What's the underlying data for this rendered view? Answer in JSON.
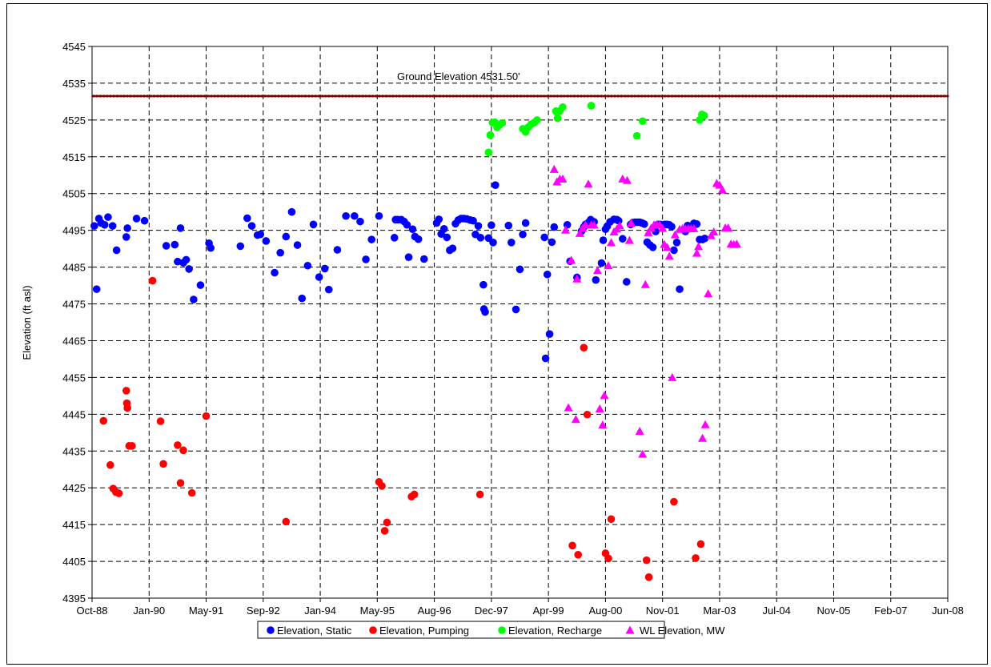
{
  "chart_data": {
    "type": "scatter",
    "ylabel": "Elevation (ft asl)",
    "ylim": [
      4395,
      4545
    ],
    "y_ticks": [
      4395,
      4405,
      4415,
      4425,
      4435,
      4445,
      4455,
      4465,
      4475,
      4485,
      4495,
      4505,
      4515,
      4525,
      4535,
      4545
    ],
    "x_tick_labels": [
      "Oct-88",
      "Jan-90",
      "May-91",
      "Sep-92",
      "Jan-94",
      "May-95",
      "Aug-96",
      "Dec-97",
      "Apr-99",
      "Aug-00",
      "Nov-01",
      "Mar-03",
      "Jul-04",
      "Nov-05",
      "Feb-07",
      "Jun-08"
    ],
    "grid": true,
    "legend_position": "bottom",
    "annotation": {
      "text": "Ground Elevation 4531.50'",
      "value": 4531.5,
      "color": "#800000"
    },
    "series": [
      {
        "name": "Elevation, Static",
        "color": "#0000ff",
        "marker": "circle",
        "points": [
          [
            0.04,
            4496.2
          ],
          [
            0.08,
            4479
          ],
          [
            0.12,
            4498.2
          ],
          [
            0.16,
            4497
          ],
          [
            0.22,
            4496.5
          ],
          [
            0.28,
            4498.6
          ],
          [
            0.36,
            4496.2
          ],
          [
            0.43,
            4489.6
          ],
          [
            0.6,
            4493.2
          ],
          [
            0.62,
            4495.6
          ],
          [
            0.78,
            4498.2
          ],
          [
            0.92,
            4497.6
          ],
          [
            1.3,
            4490.8
          ],
          [
            1.45,
            4491.1
          ],
          [
            1.5,
            4486.5
          ],
          [
            1.55,
            4495.6
          ],
          [
            1.6,
            4486.2
          ],
          [
            1.65,
            4487
          ],
          [
            1.7,
            4484.5
          ],
          [
            1.78,
            4476.2
          ],
          [
            1.9,
            4480.1
          ],
          [
            2.05,
            4491.5
          ],
          [
            2.08,
            4490.2
          ],
          [
            2.6,
            4490.7
          ],
          [
            2.72,
            4498.3
          ],
          [
            2.8,
            4496.2
          ],
          [
            2.9,
            4493.7
          ],
          [
            2.95,
            4493.9
          ],
          [
            3.05,
            4492.1
          ],
          [
            3.2,
            4483.5
          ],
          [
            3.3,
            4488.9
          ],
          [
            3.4,
            4493.3
          ],
          [
            3.5,
            4500
          ],
          [
            3.6,
            4491
          ],
          [
            3.68,
            4476.5
          ],
          [
            3.78,
            4485.4
          ],
          [
            3.88,
            4496.6
          ],
          [
            3.98,
            4482.3
          ],
          [
            4.08,
            4484.6
          ],
          [
            4.15,
            4478.9
          ],
          [
            4.3,
            4489.7
          ],
          [
            4.45,
            4498.9
          ],
          [
            4.6,
            4498.9
          ],
          [
            4.7,
            4497.4
          ],
          [
            4.8,
            4487.1
          ],
          [
            4.9,
            4492.5
          ],
          [
            5.03,
            4498.9
          ],
          [
            5.3,
            4493
          ],
          [
            5.32,
            4497.9
          ],
          [
            5.36,
            4497.9
          ],
          [
            5.42,
            4497.9
          ],
          [
            5.47,
            4497.4
          ],
          [
            5.52,
            4496.5
          ],
          [
            5.55,
            4487.7
          ],
          [
            5.62,
            4495.3
          ],
          [
            5.66,
            4493.3
          ],
          [
            5.72,
            4492.6
          ],
          [
            5.82,
            4487.2
          ],
          [
            6.04,
            4497
          ],
          [
            6.08,
            4498
          ],
          [
            6.12,
            4494
          ],
          [
            6.17,
            4495.4
          ],
          [
            6.22,
            4493.1
          ],
          [
            6.27,
            4489.6
          ],
          [
            6.32,
            4490.1
          ],
          [
            6.37,
            4496.8
          ],
          [
            6.42,
            4497.8
          ],
          [
            6.47,
            4498.2
          ],
          [
            6.52,
            4498.2
          ],
          [
            6.57,
            4498.1
          ],
          [
            6.63,
            4497.8
          ],
          [
            6.68,
            4497.6
          ],
          [
            6.72,
            4493.9
          ],
          [
            6.77,
            4496.2
          ],
          [
            6.81,
            4493
          ],
          [
            6.86,
            4480.2
          ],
          [
            6.87,
            4473.6
          ],
          [
            6.89,
            4472.8
          ],
          [
            6.95,
            4492.9
          ],
          [
            7.0,
            4496.4
          ],
          [
            7.03,
            4491.7
          ],
          [
            7.07,
            4507.3
          ],
          [
            7.3,
            4496.3
          ],
          [
            7.35,
            4491.7
          ],
          [
            7.43,
            4473.5
          ],
          [
            7.5,
            4484.4
          ],
          [
            7.55,
            4493.9
          ],
          [
            7.6,
            4497
          ],
          [
            7.93,
            4493.1
          ],
          [
            7.98,
            4483
          ],
          [
            8.02,
            4466.8
          ],
          [
            8.06,
            4491.8
          ],
          [
            8.1,
            4495.9
          ],
          [
            7.95,
            4460.2
          ],
          [
            8.33,
            4496.5
          ],
          [
            8.38,
            4486.6
          ],
          [
            8.5,
            4482.2
          ],
          [
            8.58,
            4494.8
          ],
          [
            8.62,
            4495.9
          ],
          [
            8.65,
            4496.6
          ],
          [
            8.7,
            4497.1
          ],
          [
            8.74,
            4497.9
          ],
          [
            8.8,
            4497.3
          ],
          [
            8.83,
            4481.5
          ],
          [
            8.93,
            4486.1
          ],
          [
            8.96,
            4492.3
          ],
          [
            9.0,
            4495.3
          ],
          [
            9.03,
            4496.1
          ],
          [
            9.08,
            4497.3
          ],
          [
            9.15,
            4498
          ],
          [
            9.2,
            4497.9
          ],
          [
            9.23,
            4497.6
          ],
          [
            9.3,
            4492.7
          ],
          [
            9.37,
            4481
          ],
          [
            9.44,
            4496.6
          ],
          [
            9.48,
            4497.1
          ],
          [
            9.52,
            4497.2
          ],
          [
            9.56,
            4497.2
          ],
          [
            9.6,
            4497.2
          ],
          [
            9.64,
            4497
          ],
          [
            9.68,
            4496.7
          ],
          [
            9.73,
            4491.8
          ],
          [
            9.78,
            4491
          ],
          [
            9.83,
            4490.4
          ],
          [
            9.88,
            4494.7
          ],
          [
            9.92,
            4496.6
          ],
          [
            9.96,
            4496.6
          ],
          [
            10.0,
            4496.5
          ],
          [
            10.04,
            4496.6
          ],
          [
            10.08,
            4496.6
          ],
          [
            10.12,
            4496.5
          ],
          [
            10.16,
            4496
          ],
          [
            10.2,
            4489.6
          ],
          [
            10.25,
            4491.7
          ],
          [
            10.3,
            4479
          ],
          [
            10.4,
            4494.7
          ],
          [
            10.44,
            4496.3
          ],
          [
            10.55,
            4496.9
          ],
          [
            10.6,
            4496.7
          ],
          [
            10.65,
            4492.5
          ],
          [
            10.7,
            4492.5
          ],
          [
            10.74,
            4492.8
          ]
        ]
      },
      {
        "name": "Elevation,  Pumping",
        "color": "#ff0000",
        "marker": "circle",
        "points": [
          [
            0.2,
            4443.2
          ],
          [
            0.32,
            4431.2
          ],
          [
            0.37,
            4424.8
          ],
          [
            0.42,
            4423.8
          ],
          [
            0.47,
            4423.5
          ],
          [
            0.6,
            4451.4
          ],
          [
            0.61,
            4448
          ],
          [
            0.62,
            4446.7
          ],
          [
            0.65,
            4436.4
          ],
          [
            0.7,
            4436.4
          ],
          [
            1.06,
            4481.3
          ],
          [
            1.2,
            4443.1
          ],
          [
            1.25,
            4431.5
          ],
          [
            1.5,
            4436.6
          ],
          [
            1.55,
            4426.3
          ],
          [
            1.6,
            4435.2
          ],
          [
            1.75,
            4423.6
          ],
          [
            2.0,
            4444.5
          ],
          [
            3.4,
            4415.8
          ],
          [
            5.03,
            4426.6
          ],
          [
            5.08,
            4425.5
          ],
          [
            5.13,
            4413.3
          ],
          [
            5.17,
            4415.6
          ],
          [
            5.6,
            4422.6
          ],
          [
            5.65,
            4423.2
          ],
          [
            6.8,
            4423.2
          ],
          [
            8.42,
            4409.3
          ],
          [
            8.52,
            4406.8
          ],
          [
            8.62,
            4463.1
          ],
          [
            8.68,
            4444.9
          ],
          [
            9.0,
            4407.2
          ],
          [
            9.05,
            4405.8
          ],
          [
            9.1,
            4416.5
          ],
          [
            9.72,
            4405.3
          ],
          [
            9.76,
            4400.7
          ],
          [
            10.2,
            4421.2
          ],
          [
            10.58,
            4405.9
          ],
          [
            10.67,
            4409.7
          ]
        ]
      },
      {
        "name": "Elevation, Recharge",
        "color": "#00ff00",
        "marker": "circle",
        "points": [
          [
            6.95,
            4516.2
          ],
          [
            6.98,
            4520.9
          ],
          [
            7.02,
            4524.3
          ],
          [
            7.06,
            4524.4
          ],
          [
            7.1,
            4523
          ],
          [
            7.14,
            4523.6
          ],
          [
            7.19,
            4524.2
          ],
          [
            7.55,
            4522.6
          ],
          [
            7.6,
            4521.8
          ],
          [
            7.65,
            4523.1
          ],
          [
            7.7,
            4523.9
          ],
          [
            7.75,
            4524.3
          ],
          [
            7.8,
            4525
          ],
          [
            8.13,
            4527.4
          ],
          [
            8.16,
            4525.5
          ],
          [
            8.2,
            4527.5
          ],
          [
            8.25,
            4528.5
          ],
          [
            8.75,
            4528.9
          ],
          [
            9.55,
            4520.7
          ],
          [
            9.65,
            4524.7
          ],
          [
            10.65,
            4525
          ],
          [
            10.69,
            4526.5
          ],
          [
            10.73,
            4526.2
          ]
        ]
      },
      {
        "name": "WL Elevation, MW",
        "color": "#ff00ff",
        "marker": "triangle",
        "points": [
          [
            8.1,
            4511.6
          ],
          [
            8.15,
            4508.2
          ],
          [
            8.2,
            4509
          ],
          [
            8.25,
            4509
          ],
          [
            8.3,
            4495.1
          ],
          [
            8.35,
            4446.8
          ],
          [
            8.4,
            4486.9
          ],
          [
            8.48,
            4443.6
          ],
          [
            8.5,
            4481.8
          ],
          [
            8.55,
            4494.2
          ],
          [
            8.6,
            4495.6
          ],
          [
            8.65,
            4496.5
          ],
          [
            8.7,
            4507.6
          ],
          [
            8.75,
            4496.5
          ],
          [
            8.8,
            4496.5
          ],
          [
            8.86,
            4484.1
          ],
          [
            8.9,
            4446.5
          ],
          [
            8.95,
            4442.1
          ],
          [
            8.98,
            4450.1
          ],
          [
            9.05,
            4485.4
          ],
          [
            9.1,
            4491.7
          ],
          [
            9.15,
            4494.6
          ],
          [
            9.2,
            4495.4
          ],
          [
            9.25,
            4496.3
          ],
          [
            9.3,
            4509
          ],
          [
            9.38,
            4508.6
          ],
          [
            9.42,
            4492.3
          ],
          [
            9.45,
            4497
          ],
          [
            9.6,
            4440.4
          ],
          [
            9.65,
            4434.2
          ],
          [
            9.7,
            4480.3
          ],
          [
            9.75,
            4494.4
          ],
          [
            9.8,
            4495.6
          ],
          [
            9.85,
            4496.5
          ],
          [
            9.9,
            4496.5
          ],
          [
            9.95,
            4496.5
          ],
          [
            10.0,
            4495.6
          ],
          [
            10.03,
            4491.2
          ],
          [
            10.08,
            4490.4
          ],
          [
            10.12,
            4488
          ],
          [
            10.17,
            4455
          ],
          [
            10.22,
            4493.8
          ],
          [
            10.3,
            4495.3
          ],
          [
            10.35,
            4495.5
          ],
          [
            10.4,
            4495.4
          ],
          [
            10.45,
            4495.5
          ],
          [
            10.5,
            4495.5
          ],
          [
            10.55,
            4495.5
          ],
          [
            10.6,
            4488.8
          ],
          [
            10.63,
            4490.6
          ],
          [
            10.7,
            4438.5
          ],
          [
            10.75,
            4442.2
          ],
          [
            10.8,
            4477.8
          ],
          [
            10.85,
            4493.6
          ],
          [
            10.9,
            4494.6
          ],
          [
            10.95,
            4507.8
          ],
          [
            11.0,
            4507.3
          ],
          [
            11.05,
            4506
          ],
          [
            11.1,
            4495.7
          ],
          [
            11.15,
            4495.7
          ],
          [
            11.2,
            4491.3
          ],
          [
            11.25,
            4491.2
          ],
          [
            11.3,
            4491.3
          ]
        ]
      }
    ]
  }
}
